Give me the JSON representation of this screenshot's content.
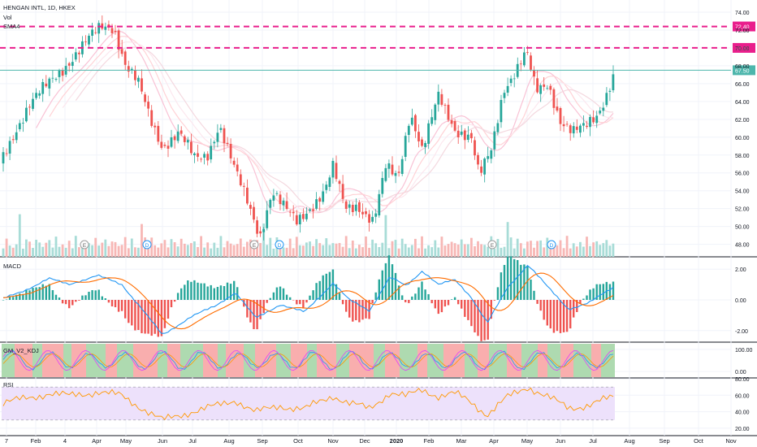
{
  "header": {
    "symbol_line": "HENGAN INTL, 1D, HKEX",
    "vol_label": "Vol",
    "sma_label": "SMA4"
  },
  "colors": {
    "up": "#26a69a",
    "down": "#ef5350",
    "ref_line": "#e91e8c",
    "price_line": "#4db6ac",
    "macd_line": "#2196f3",
    "signal_line": "#ff6d00",
    "rsi_line": "#ff9800",
    "rsi_band": "#ede1fb",
    "osc_green": "#a5d6a7",
    "osc_red": "#f8a5a5"
  },
  "chart_data": [
    {
      "type": "candlestick",
      "name": "price",
      "ylim": [
        46.6,
        75.0
      ],
      "yticks": [
        48.0,
        50.0,
        52.0,
        54.0,
        56.0,
        58.0,
        60.0,
        62.0,
        64.0,
        66.0,
        68.0,
        70.0,
        72.0,
        74.0
      ],
      "ref_lines": [
        {
          "value": 72.4,
          "label": "72.40"
        },
        {
          "value": 70.0,
          "label": "70.00"
        }
      ],
      "last_price": {
        "value": 67.5,
        "label": "67.50"
      },
      "keypoints": [
        {
          "x": 0,
          "y": 57.0
        },
        {
          "x": 10,
          "y": 59.0
        },
        {
          "x": 20,
          "y": 61.0
        },
        {
          "x": 35,
          "y": 63.5
        },
        {
          "x": 55,
          "y": 65.5
        },
        {
          "x": 75,
          "y": 67.5
        },
        {
          "x": 95,
          "y": 69.5
        },
        {
          "x": 110,
          "y": 71.0
        },
        {
          "x": 125,
          "y": 72.4
        },
        {
          "x": 140,
          "y": 72.4
        },
        {
          "x": 155,
          "y": 68.0
        },
        {
          "x": 170,
          "y": 66.0
        },
        {
          "x": 185,
          "y": 62.0
        },
        {
          "x": 200,
          "y": 59.0
        },
        {
          "x": 220,
          "y": 60.5
        },
        {
          "x": 240,
          "y": 57.5
        },
        {
          "x": 255,
          "y": 58.0
        },
        {
          "x": 270,
          "y": 61.5
        },
        {
          "x": 290,
          "y": 56.0
        },
        {
          "x": 310,
          "y": 51.5
        },
        {
          "x": 320,
          "y": 49.0
        },
        {
          "x": 335,
          "y": 54.0
        },
        {
          "x": 350,
          "y": 52.0
        },
        {
          "x": 365,
          "y": 50.5
        },
        {
          "x": 385,
          "y": 52.5
        },
        {
          "x": 400,
          "y": 54.0
        },
        {
          "x": 410,
          "y": 56.5
        },
        {
          "x": 425,
          "y": 52.0
        },
        {
          "x": 440,
          "y": 52.5
        },
        {
          "x": 460,
          "y": 50.5
        },
        {
          "x": 475,
          "y": 56.5
        },
        {
          "x": 490,
          "y": 55.5
        },
        {
          "x": 505,
          "y": 63.0
        },
        {
          "x": 520,
          "y": 58.5
        },
        {
          "x": 540,
          "y": 64.5
        },
        {
          "x": 560,
          "y": 61.0
        },
        {
          "x": 580,
          "y": 60.0
        },
        {
          "x": 590,
          "y": 55.5
        },
        {
          "x": 605,
          "y": 58.5
        },
        {
          "x": 620,
          "y": 65.5
        },
        {
          "x": 635,
          "y": 67.5
        },
        {
          "x": 648,
          "y": 69.5
        },
        {
          "x": 660,
          "y": 65.0
        },
        {
          "x": 675,
          "y": 66.0
        },
        {
          "x": 690,
          "y": 62.0
        },
        {
          "x": 705,
          "y": 60.5
        },
        {
          "x": 720,
          "y": 61.0
        },
        {
          "x": 735,
          "y": 62.5
        },
        {
          "x": 745,
          "y": 64.5
        },
        {
          "x": 757,
          "y": 67.5
        }
      ]
    },
    {
      "type": "line",
      "name": "MACD",
      "ylim": [
        -2.7,
        2.7
      ],
      "yticks": [
        {
          "v": 2.0,
          "label": "2.00"
        },
        {
          "v": 0.0,
          "label": "0.00"
        },
        {
          "v": -2.0,
          "label": "-2.00"
        }
      ],
      "keypoints": [
        {
          "x": 0,
          "y": 0.0
        },
        {
          "x": 30,
          "y": 0.6
        },
        {
          "x": 60,
          "y": 1.4
        },
        {
          "x": 85,
          "y": 1.0
        },
        {
          "x": 120,
          "y": 1.6
        },
        {
          "x": 150,
          "y": 1.0
        },
        {
          "x": 175,
          "y": -0.6
        },
        {
          "x": 200,
          "y": -2.3
        },
        {
          "x": 235,
          "y": -1.1
        },
        {
          "x": 265,
          "y": -0.4
        },
        {
          "x": 290,
          "y": 0.5
        },
        {
          "x": 315,
          "y": -1.2
        },
        {
          "x": 345,
          "y": -0.3
        },
        {
          "x": 375,
          "y": -0.8
        },
        {
          "x": 410,
          "y": 1.1
        },
        {
          "x": 430,
          "y": 0.0
        },
        {
          "x": 455,
          "y": -0.7
        },
        {
          "x": 480,
          "y": 1.5
        },
        {
          "x": 500,
          "y": 0.9
        },
        {
          "x": 520,
          "y": 1.9
        },
        {
          "x": 540,
          "y": 1.0
        },
        {
          "x": 560,
          "y": 1.3
        },
        {
          "x": 580,
          "y": 0.2
        },
        {
          "x": 600,
          "y": -1.5
        },
        {
          "x": 625,
          "y": 0.8
        },
        {
          "x": 650,
          "y": 2.3
        },
        {
          "x": 675,
          "y": 0.8
        },
        {
          "x": 700,
          "y": -0.6
        },
        {
          "x": 725,
          "y": -0.2
        },
        {
          "x": 757,
          "y": 0.9
        }
      ],
      "signal_lag": 8
    },
    {
      "type": "line",
      "name": "GM_V2_KDJ",
      "ylim": [
        -25,
        125
      ],
      "yticks": [
        {
          "v": 100,
          "label": "100.00"
        },
        {
          "v": 0,
          "label": "0.00"
        }
      ]
    },
    {
      "type": "line",
      "name": "RSI",
      "ylim": [
        15,
        80
      ],
      "yticks": [
        {
          "v": 80,
          "label": "80.00"
        },
        {
          "v": 60,
          "label": "60.00"
        },
        {
          "v": 40,
          "label": "40.00"
        },
        {
          "v": 20,
          "label": "20.00"
        }
      ],
      "band": [
        30,
        70
      ]
    }
  ],
  "indicator_labels": {
    "macd": "MACD",
    "osc": "GM_V2_KDJ",
    "rsi": "RSI"
  },
  "event_markers": [
    "E",
    "D",
    "E",
    "D",
    "E",
    "D"
  ],
  "x_axis": {
    "labels": [
      {
        "text": "7",
        "bold": false
      },
      {
        "text": "Feb",
        "bold": false
      },
      {
        "text": "4",
        "bold": false
      },
      {
        "text": "Apr",
        "bold": false
      },
      {
        "text": "May",
        "bold": false
      },
      {
        "text": "Jun",
        "bold": false
      },
      {
        "text": "Jul",
        "bold": false
      },
      {
        "text": "Aug",
        "bold": false
      },
      {
        "text": "Sep",
        "bold": false
      },
      {
        "text": "Oct",
        "bold": false
      },
      {
        "text": "Nov",
        "bold": false
      },
      {
        "text": "Dec",
        "bold": false
      },
      {
        "text": "2020",
        "bold": true
      },
      {
        "text": "Feb",
        "bold": false
      },
      {
        "text": "Mar",
        "bold": false
      },
      {
        "text": "Apr",
        "bold": false
      },
      {
        "text": "May",
        "bold": false
      },
      {
        "text": "Jun",
        "bold": false
      },
      {
        "text": "Jul",
        "bold": false
      },
      {
        "text": "Aug",
        "bold": false
      },
      {
        "text": "Sep",
        "bold": false
      },
      {
        "text": "Oct",
        "bold": false
      },
      {
        "text": "Nov",
        "bold": false
      }
    ]
  }
}
